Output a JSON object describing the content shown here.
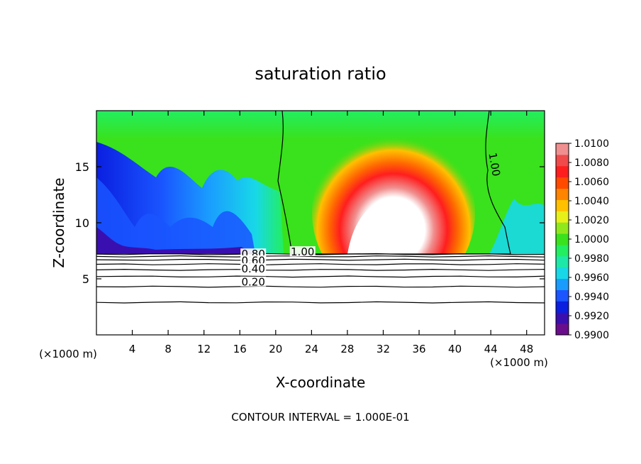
{
  "chart_data": {
    "type": "heatmap",
    "title": "saturation ratio",
    "xlabel": "X-coordinate",
    "ylabel": "Z-coordinate",
    "x_unit_label": "(×1000 m)",
    "x_unit_label_right": "(×1000 m)",
    "x_ticks": [
      4,
      8,
      12,
      16,
      20,
      24,
      28,
      32,
      36,
      40,
      44,
      48
    ],
    "y_ticks": [
      5,
      10,
      15
    ],
    "xlim": [
      0,
      50
    ],
    "ylim": [
      0,
      20
    ],
    "footer": "CONTOUR INTERVAL = 1.000E-01",
    "colorbar": {
      "range": [
        0.99,
        1.01
      ],
      "labels": [
        "1.0100",
        "1.0080",
        "1.0060",
        "1.0040",
        "1.0020",
        "1.0000",
        "0.9980",
        "0.9960",
        "0.9940",
        "0.9920",
        "0.9900"
      ],
      "colors": [
        "#6a0d8c",
        "#3a0fb0",
        "#0a1fe0",
        "#1a55ff",
        "#1a9cff",
        "#18d8e8",
        "#1ee8a8",
        "#22ee60",
        "#39e21c",
        "#8fe81c",
        "#e8f01a",
        "#ffc000",
        "#ff8400",
        "#ff4a00",
        "#ff1e1e",
        "#f04a4a",
        "#f08f8f"
      ]
    },
    "contour_labels": [
      {
        "text": "1.00",
        "x": 23,
        "z": 7.4
      },
      {
        "text": "1.00",
        "x": 44.4,
        "z": 15.2
      },
      {
        "text": "0.80",
        "x": 17.5,
        "z": 7.2
      },
      {
        "text": "0.60",
        "x": 17.5,
        "z": 6.6
      },
      {
        "text": "0.40",
        "x": 17.5,
        "z": 5.9
      },
      {
        "text": "0.20",
        "x": 17.5,
        "z": 4.7
      }
    ],
    "contour_levels": [
      0.2,
      0.4,
      0.6,
      0.8,
      1.0
    ],
    "cloud_base_z": 7.3,
    "lower_contours_z": [
      2.9,
      4.3,
      5.2,
      5.8,
      6.3,
      6.7,
      7.0,
      7.2
    ]
  }
}
